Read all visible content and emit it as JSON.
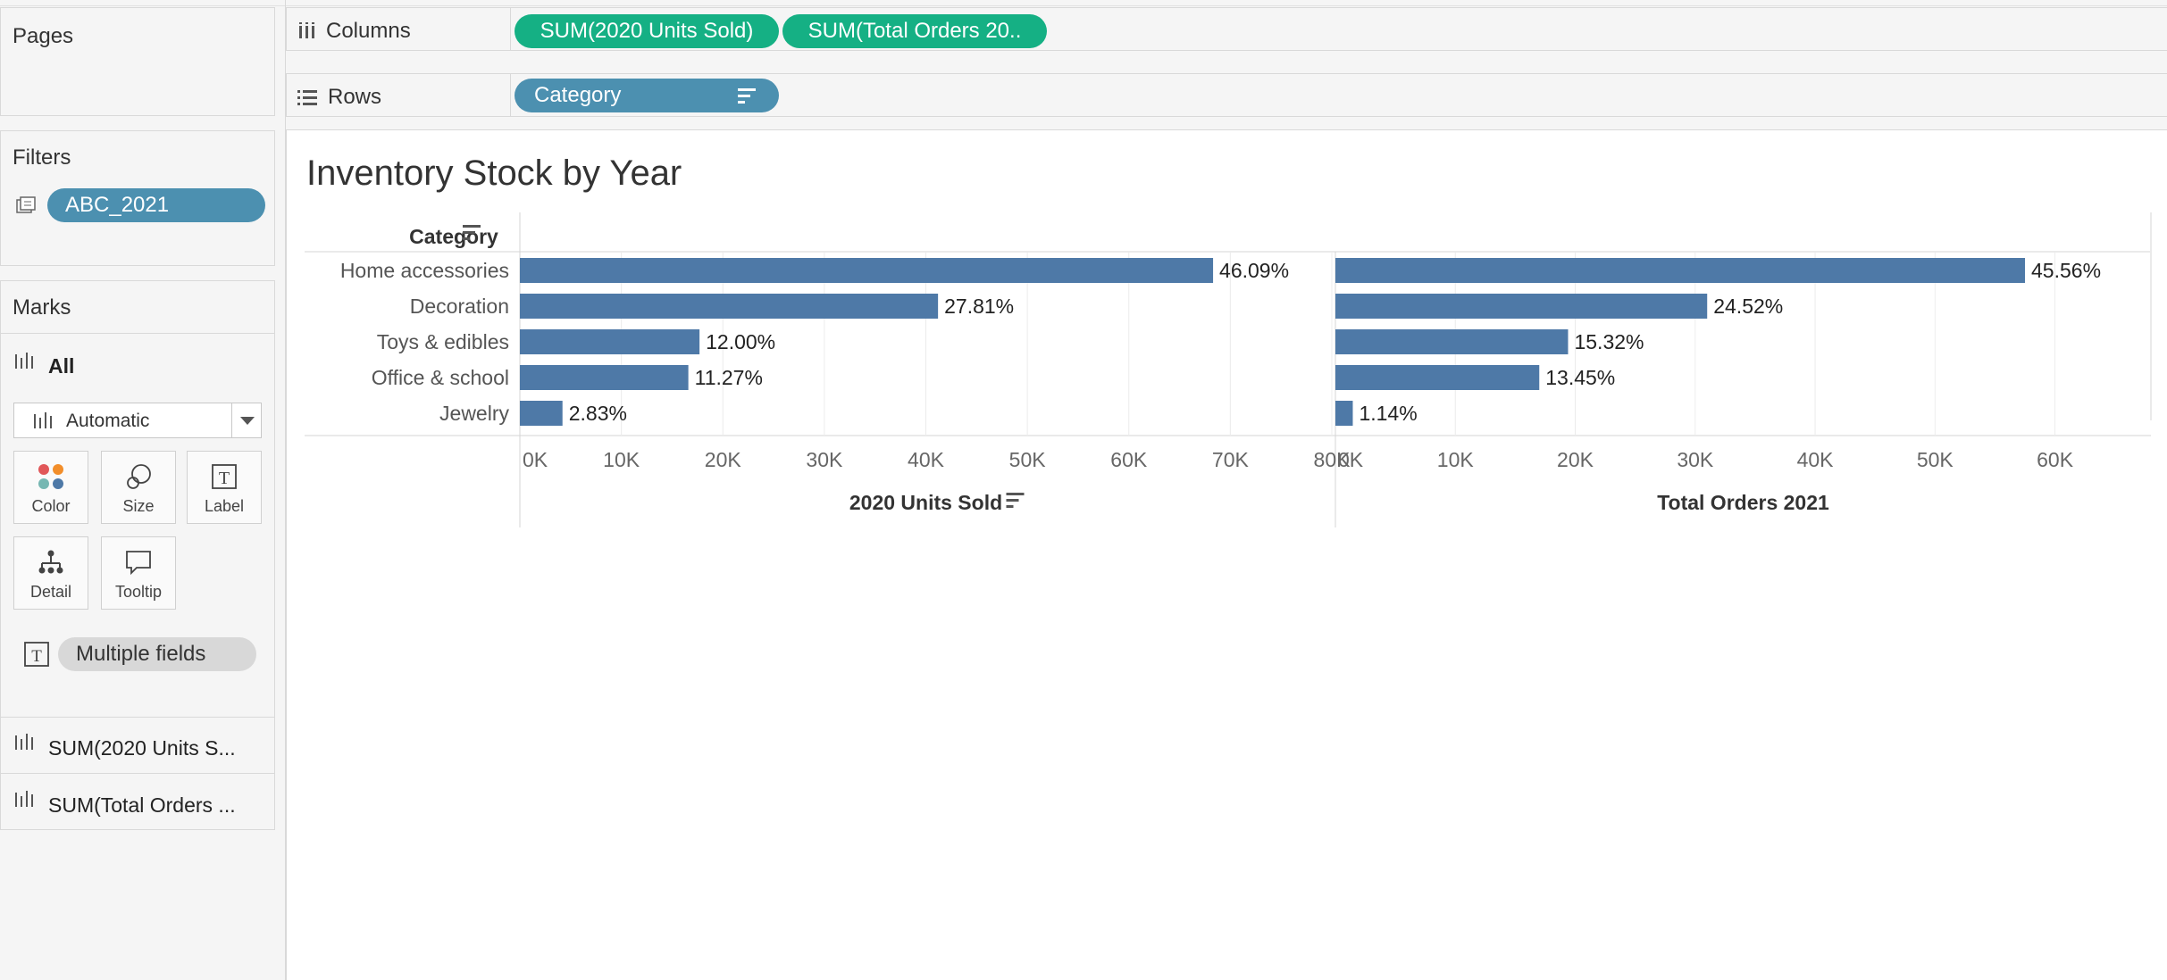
{
  "pages": {
    "title": "Pages"
  },
  "filters": {
    "title": "Filters",
    "items": [
      "ABC_2021"
    ]
  },
  "marks": {
    "title": "Marks",
    "all_label": "All",
    "mark_type": "Automatic",
    "buttons": [
      "Color",
      "Size",
      "Label",
      "Detail",
      "Tooltip"
    ],
    "label_field": "Multiple fields",
    "measures": [
      "SUM(2020 Units S...",
      "SUM(Total Orders ..."
    ]
  },
  "shelves": {
    "columns_label": "Columns",
    "columns_pills": [
      "SUM(2020 Units Sold)",
      "SUM(Total Orders 20.."
    ],
    "rows_label": "Rows",
    "rows_pills": [
      "Category"
    ]
  },
  "colors": {
    "bar": "#4e79a7",
    "pill_blue": "#4c90b0",
    "pill_green": "#15b084"
  },
  "chart_data": {
    "type": "bar",
    "title": "Inventory Stock by Year",
    "row_header": "Category",
    "categories": [
      "Home accessories",
      "Decoration",
      "Toys & edibles",
      "Office & school",
      "Jewelry"
    ],
    "series": [
      {
        "name": "2020 Units Sold",
        "values": [
          68300,
          41200,
          17700,
          16600,
          4200
        ],
        "labels": [
          "46.09%",
          "27.81%",
          "12.00%",
          "11.27%",
          "2.83%"
        ],
        "xlim": [
          0,
          80000
        ],
        "ticks": [
          "0K",
          "10K",
          "20K",
          "30K",
          "40K",
          "50K",
          "60K",
          "70K",
          "80K"
        ]
      },
      {
        "name": "Total Orders 2021",
        "values": [
          57500,
          31000,
          19400,
          17000,
          1450
        ],
        "labels": [
          "45.56%",
          "24.52%",
          "15.32%",
          "13.45%",
          "1.14%"
        ],
        "xlim": [
          0,
          68000
        ],
        "ticks": [
          "0K",
          "10K",
          "20K",
          "30K",
          "40K",
          "50K",
          "60K"
        ]
      }
    ],
    "grid": true
  }
}
